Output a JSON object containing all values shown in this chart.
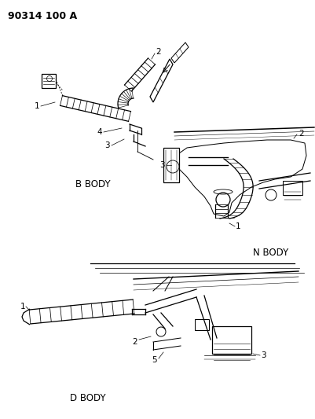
{
  "title_text": "90314 100 A",
  "bg_color": "#ffffff",
  "label_fontsize": 7.5,
  "body_label_fontsize": 8.5,
  "b_body_label": "B BODY",
  "n_body_label": "N BODY",
  "d_body_label": "D BODY",
  "lw_main": 0.9,
  "lw_thin": 0.5
}
